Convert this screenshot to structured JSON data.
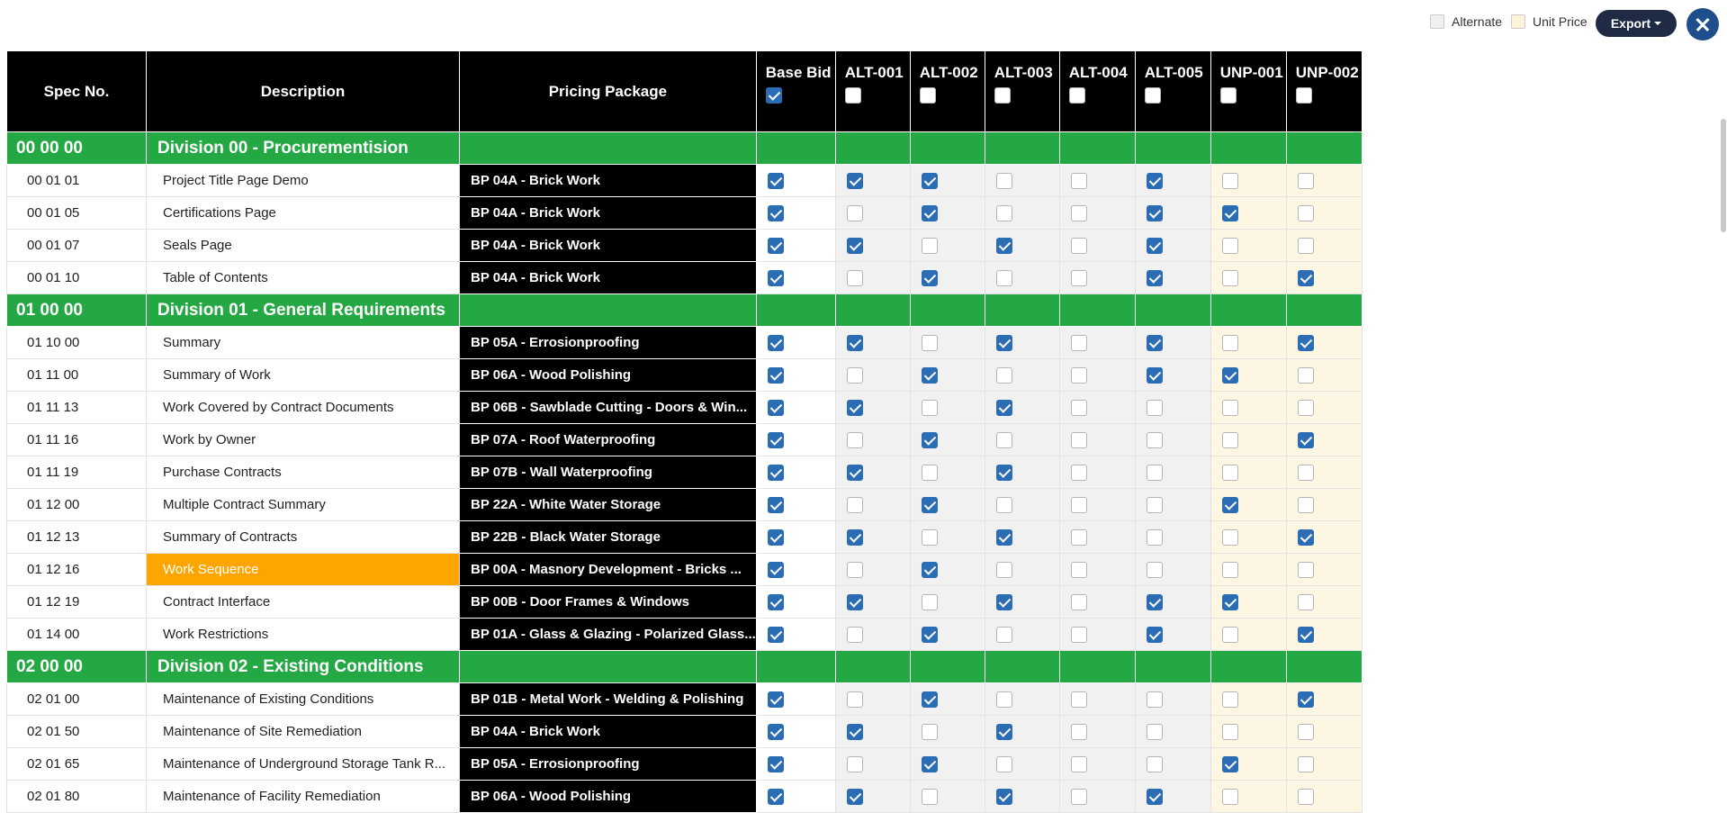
{
  "header": {
    "legend": [
      "Alternate",
      "Unit Price"
    ],
    "export": "Export"
  },
  "table": {
    "columns": [
      "Spec No.",
      "Description",
      "Pricing Package",
      "Base Bid",
      "ALT-001",
      "ALT-002",
      "ALT-003",
      "ALT-004",
      "ALT-005",
      "UNP-001",
      "UNP-002"
    ],
    "header_checks": [
      true,
      false,
      false,
      false,
      false,
      false,
      false,
      false
    ],
    "rows": [
      {
        "spec": "00 00 00",
        "division": "Division 00 - Procurementision"
      },
      {
        "spec": "00 01 01",
        "description": "Project Title Page Demo",
        "package": "BP 04A - Brick Work",
        "checks": [
          true,
          true,
          true,
          false,
          false,
          true,
          false,
          false
        ]
      },
      {
        "spec": "00 01 05",
        "description": "Certifications Page",
        "package": "BP 04A - Brick Work",
        "checks": [
          true,
          false,
          true,
          false,
          false,
          true,
          true,
          false
        ]
      },
      {
        "spec": "00 01 07",
        "description": "Seals Page",
        "package": "BP 04A - Brick Work",
        "checks": [
          true,
          true,
          false,
          true,
          false,
          true,
          false,
          false
        ]
      },
      {
        "spec": "00 01 10",
        "description": "Table of Contents",
        "package": "BP 04A - Brick Work",
        "checks": [
          true,
          false,
          true,
          false,
          false,
          true,
          false,
          true
        ]
      },
      {
        "spec": "01 00 00",
        "division": "Division 01 - General Requirements"
      },
      {
        "spec": "01 10 00",
        "description": "Summary",
        "package": "BP 05A - Errosionproofing",
        "checks": [
          true,
          true,
          false,
          true,
          false,
          true,
          false,
          true
        ]
      },
      {
        "spec": "01 11 00",
        "description": "Summary of Work",
        "package": "BP 06A - Wood Polishing",
        "checks": [
          true,
          false,
          true,
          false,
          false,
          true,
          true,
          false
        ]
      },
      {
        "spec": "01 11 13",
        "description": "Work Covered by Contract Documents",
        "package": "BP 06B - Sawblade Cutting - Doors & Win...",
        "checks": [
          true,
          true,
          false,
          true,
          false,
          false,
          false,
          false
        ]
      },
      {
        "spec": "01 11 16",
        "description": "Work by Owner",
        "package": "BP 07A - Roof Waterproofing",
        "checks": [
          true,
          false,
          true,
          false,
          false,
          false,
          false,
          true
        ]
      },
      {
        "spec": "01 11 19",
        "description": "Purchase Contracts",
        "package": "BP 07B - Wall Waterproofing",
        "checks": [
          true,
          true,
          false,
          true,
          false,
          false,
          false,
          false
        ]
      },
      {
        "spec": "01 12 00",
        "description": "Multiple Contract Summary",
        "package": "BP 22A - White Water Storage",
        "checks": [
          true,
          false,
          true,
          false,
          false,
          false,
          true,
          false
        ]
      },
      {
        "spec": "01 12 13",
        "description": "Summary of Contracts",
        "package": "BP 22B - Black Water Storage",
        "checks": [
          true,
          true,
          false,
          true,
          false,
          false,
          false,
          true
        ]
      },
      {
        "spec": "01 12 16",
        "description": "Work Sequence",
        "package": "BP 00A - Masnory Development - Bricks ...",
        "checks": [
          true,
          false,
          true,
          false,
          false,
          false,
          false,
          false
        ],
        "highlight": true
      },
      {
        "spec": "01 12 19",
        "description": "Contract Interface",
        "package": "BP 00B - Door Frames & Windows",
        "checks": [
          true,
          true,
          false,
          true,
          false,
          true,
          true,
          false
        ]
      },
      {
        "spec": "01 14 00",
        "description": "Work Restrictions",
        "package": "BP 01A - Glass & Glazing - Polarized Glass...",
        "checks": [
          true,
          false,
          true,
          false,
          false,
          true,
          false,
          true
        ]
      },
      {
        "spec": "02 00 00",
        "division": "Division 02 - Existing Conditions"
      },
      {
        "spec": "02 01 00",
        "description": "Maintenance of Existing Conditions",
        "package": "BP 01B - Metal Work - Welding & Polishing",
        "checks": [
          true,
          false,
          true,
          false,
          false,
          false,
          false,
          true
        ]
      },
      {
        "spec": "02 01 50",
        "description": "Maintenance of Site Remediation",
        "package": "BP 04A - Brick Work",
        "checks": [
          true,
          true,
          false,
          true,
          false,
          false,
          false,
          false
        ]
      },
      {
        "spec": "02 01 65",
        "description": "Maintenance of Underground Storage Tank R...",
        "package": "BP 05A - Errosionproofing",
        "checks": [
          true,
          false,
          true,
          false,
          false,
          false,
          true,
          false
        ]
      },
      {
        "spec": "02 01 80",
        "description": "Maintenance of Facility Remediation",
        "package": "BP 06A - Wood Polishing",
        "checks": [
          true,
          true,
          false,
          true,
          false,
          true,
          false,
          false
        ]
      }
    ]
  }
}
